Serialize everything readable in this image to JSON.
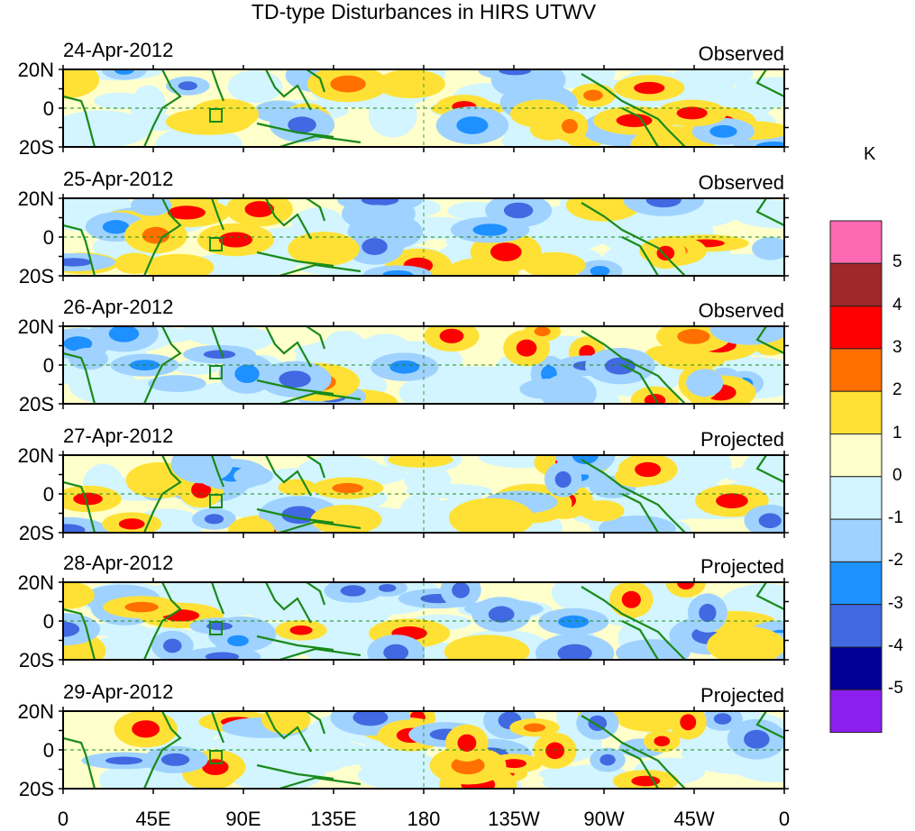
{
  "title": "TD-type Disturbances in HIRS UTWV",
  "panels": [
    {
      "date": "24-Apr-2012",
      "status": "Observed"
    },
    {
      "date": "25-Apr-2012",
      "status": "Observed"
    },
    {
      "date": "26-Apr-2012",
      "status": "Observed"
    },
    {
      "date": "27-Apr-2012",
      "status": "Projected"
    },
    {
      "date": "28-Apr-2012",
      "status": "Projected"
    },
    {
      "date": "29-Apr-2012",
      "status": "Projected"
    }
  ],
  "chart_data": {
    "type": "heatmap",
    "title": "TD-type Disturbances in HIRS UTWV",
    "y_ticks": [
      "20N",
      "0",
      "20S"
    ],
    "x_ticks": [
      "0",
      "45E",
      "90E",
      "135E",
      "180",
      "135W",
      "90W",
      "45W",
      "0"
    ],
    "colorbar": {
      "unit": "K",
      "labels": [
        "5",
        "4",
        "3",
        "2",
        "1",
        "0",
        "-1",
        "-2",
        "-3",
        "-4",
        "-5"
      ],
      "colors": [
        "#ff69b4",
        "#a02828",
        "#ff0000",
        "#ff7000",
        "#ffe135",
        "#ffffcc",
        "#d2f5ff",
        "#a0d2ff",
        "#1e90ff",
        "#4169e1",
        "#000096",
        "#8c1ef0"
      ]
    }
  }
}
